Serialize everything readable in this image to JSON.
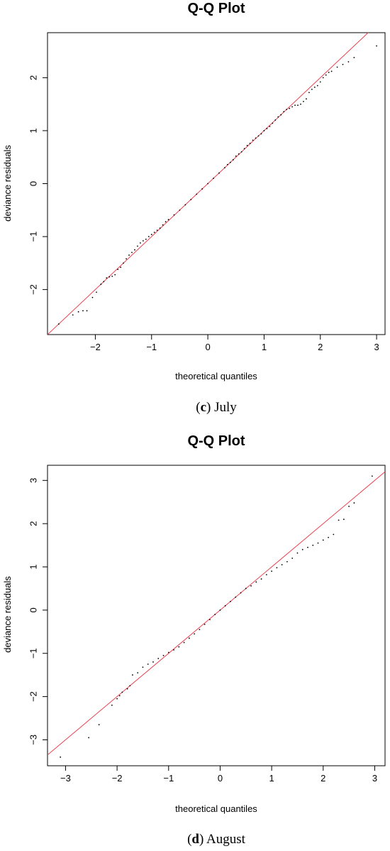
{
  "panels": [
    {
      "caption_letter": "c",
      "caption_text": "July",
      "chart_data": {
        "type": "scatter",
        "title": "Q-Q Plot",
        "xlabel": "theoretical quantiles",
        "ylabel": "deviance residuals",
        "xlim": [
          -2.85,
          3.15
        ],
        "ylim": [
          -2.85,
          2.85
        ],
        "xticks": [
          -2,
          -1,
          0,
          1,
          2,
          3
        ],
        "yticks": [
          -2,
          -1,
          0,
          1,
          2
        ],
        "reference_line": {
          "slope": 1.0,
          "intercept": 0.0,
          "color": "#e8434f"
        },
        "point_color": "#000000",
        "series": [
          {
            "x": [
              -2.65,
              -2.4,
              -2.3,
              -2.22,
              -2.15,
              -2.05,
              -1.98,
              -1.9,
              -1.85,
              -1.8,
              -1.75,
              -1.7,
              -1.65,
              -1.6,
              -1.55,
              -1.5,
              -1.45,
              -1.4,
              -1.35,
              -1.3,
              -1.25,
              -1.2,
              -1.15,
              -1.1,
              -1.05,
              -1.0,
              -0.95,
              -0.9,
              -0.85,
              -0.8,
              -0.75,
              -0.7,
              -0.6,
              -0.5,
              -0.4,
              -0.3,
              -0.2,
              -0.1,
              0.0,
              0.1,
              0.2,
              0.3,
              0.35,
              0.4,
              0.45,
              0.5,
              0.55,
              0.6,
              0.65,
              0.7,
              0.75,
              0.8,
              0.85,
              0.9,
              0.95,
              1.0,
              1.05,
              1.1,
              1.15,
              1.2,
              1.25,
              1.3,
              1.35,
              1.4,
              1.45,
              1.5,
              1.55,
              1.6,
              1.65,
              1.7,
              1.75,
              1.8,
              1.85,
              1.9,
              1.95,
              2.0,
              2.05,
              2.1,
              2.15,
              2.2,
              2.3,
              2.4,
              2.5,
              2.6,
              3.0
            ],
            "y": [
              -2.65,
              -2.48,
              -2.42,
              -2.4,
              -2.4,
              -2.15,
              -2.05,
              -1.9,
              -1.85,
              -1.78,
              -1.76,
              -1.75,
              -1.72,
              -1.62,
              -1.58,
              -1.5,
              -1.42,
              -1.35,
              -1.3,
              -1.25,
              -1.18,
              -1.12,
              -1.08,
              -1.05,
              -1.0,
              -0.96,
              -0.92,
              -0.88,
              -0.84,
              -0.78,
              -0.72,
              -0.68,
              -0.59,
              -0.5,
              -0.4,
              -0.3,
              -0.2,
              -0.1,
              0.0,
              0.1,
              0.2,
              0.3,
              0.36,
              0.4,
              0.45,
              0.52,
              0.56,
              0.6,
              0.66,
              0.72,
              0.76,
              0.82,
              0.86,
              0.9,
              0.94,
              1.0,
              1.04,
              1.08,
              1.14,
              1.2,
              1.26,
              1.3,
              1.36,
              1.4,
              1.42,
              1.45,
              1.48,
              1.48,
              1.5,
              1.55,
              1.6,
              1.72,
              1.78,
              1.82,
              1.85,
              1.92,
              2.0,
              2.05,
              2.1,
              2.12,
              2.2,
              2.25,
              2.3,
              2.38,
              2.6
            ]
          }
        ]
      }
    },
    {
      "caption_letter": "d",
      "caption_text": "August",
      "chart_data": {
        "type": "scatter",
        "title": "Q-Q Plot",
        "xlabel": "theoretical quantiles",
        "ylabel": "deviance residuals",
        "xlim": [
          -3.35,
          3.2
        ],
        "ylim": [
          -3.6,
          3.35
        ],
        "xticks": [
          -3,
          -2,
          -1,
          0,
          1,
          2,
          3
        ],
        "yticks": [
          -3,
          -2,
          -1,
          0,
          1,
          2,
          3
        ],
        "reference_line": {
          "slope": 1.0,
          "intercept": 0.0,
          "color": "#e8434f"
        },
        "point_color": "#000000",
        "series": [
          {
            "x": [
              -3.1,
              -2.55,
              -2.35,
              -2.1,
              -2.0,
              -1.95,
              -1.9,
              -1.8,
              -1.75,
              -1.7,
              -1.6,
              -1.5,
              -1.4,
              -1.3,
              -1.2,
              -1.1,
              -1.0,
              -0.9,
              -0.8,
              -0.7,
              -0.6,
              -0.5,
              -0.4,
              -0.3,
              -0.2,
              -0.1,
              0.0,
              0.1,
              0.2,
              0.3,
              0.4,
              0.5,
              0.6,
              0.7,
              0.8,
              0.9,
              1.0,
              1.1,
              1.2,
              1.3,
              1.4,
              1.5,
              1.6,
              1.7,
              1.8,
              1.9,
              2.0,
              2.1,
              2.2,
              2.3,
              2.4,
              2.5,
              2.6,
              2.95
            ],
            "y": [
              -3.4,
              -2.95,
              -2.65,
              -2.2,
              -2.05,
              -1.98,
              -1.9,
              -1.82,
              -1.75,
              -1.5,
              -1.45,
              -1.32,
              -1.25,
              -1.2,
              -1.12,
              -1.05,
              -0.98,
              -0.92,
              -0.85,
              -0.75,
              -0.65,
              -0.55,
              -0.45,
              -0.33,
              -0.22,
              -0.1,
              0.0,
              0.1,
              0.2,
              0.3,
              0.4,
              0.5,
              0.56,
              0.65,
              0.72,
              0.82,
              0.9,
              0.98,
              1.05,
              1.12,
              1.2,
              1.32,
              1.4,
              1.45,
              1.5,
              1.55,
              1.62,
              1.68,
              1.75,
              2.08,
              2.1,
              2.4,
              2.48,
              3.1
            ]
          }
        ]
      }
    }
  ]
}
